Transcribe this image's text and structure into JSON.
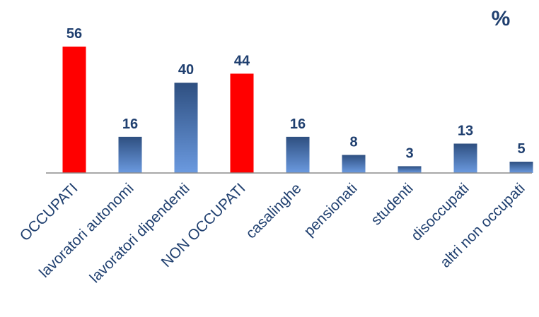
{
  "chart_data": {
    "type": "bar",
    "unit_label": "%",
    "categories": [
      "OCCUPATI",
      "lavoratori autonomi",
      "lavoratori dipendenti",
      "NON OCCUPATI",
      "casalinghe",
      "pensionati",
      "studenti",
      "disoccupati",
      "altri non occupati"
    ],
    "values": [
      56,
      16,
      40,
      44,
      16,
      8,
      3,
      13,
      5
    ],
    "highlight": [
      true,
      false,
      false,
      true,
      false,
      false,
      false,
      false,
      false
    ],
    "colors": {
      "highlight": "#ff0000",
      "bar_top": "#2e4f80",
      "bar_bottom": "#6b9ae0",
      "text": "#1f3f6f",
      "axis": "#8c8c8c"
    },
    "ylim": [
      0,
      56
    ],
    "grid": false,
    "legend": "none"
  }
}
